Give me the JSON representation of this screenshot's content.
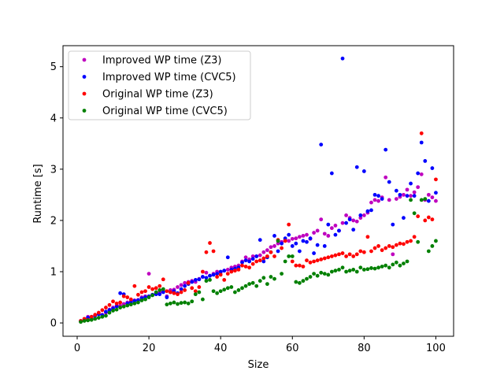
{
  "chart_data": {
    "type": "scatter",
    "title": "",
    "xlabel": "Size",
    "ylabel": "Runtime [s]",
    "xlim": [
      -3.95,
      104.95
    ],
    "ylim": [
      -0.26,
      5.41
    ],
    "xticks": [
      0,
      20,
      40,
      60,
      80,
      100
    ],
    "yticks": [
      0,
      1,
      2,
      3,
      4,
      5
    ],
    "grid": false,
    "legend_position": "upper-left",
    "series": [
      {
        "name": "Improved WP time (Z3)",
        "color": "#bf00bf",
        "x": [
          1,
          2,
          3,
          4,
          5,
          6,
          7,
          8,
          9,
          10,
          11,
          12,
          13,
          14,
          15,
          16,
          17,
          18,
          19,
          20,
          21,
          22,
          23,
          24,
          25,
          26,
          27,
          28,
          29,
          30,
          31,
          32,
          33,
          34,
          35,
          36,
          37,
          38,
          39,
          40,
          41,
          42,
          43,
          44,
          45,
          46,
          47,
          48,
          49,
          50,
          51,
          52,
          53,
          54,
          55,
          56,
          57,
          58,
          59,
          60,
          61,
          62,
          63,
          64,
          65,
          66,
          67,
          68,
          69,
          70,
          71,
          72,
          73,
          74,
          75,
          76,
          77,
          78,
          79,
          80,
          81,
          82,
          83,
          84,
          85,
          86,
          87,
          88,
          89,
          90,
          91,
          92,
          93,
          94,
          95,
          96,
          97,
          98,
          99,
          100
        ],
        "y": [
          0.04,
          0.06,
          0.12,
          0.1,
          0.15,
          0.18,
          0.16,
          0.2,
          0.26,
          0.3,
          0.33,
          0.34,
          0.37,
          0.4,
          0.42,
          0.44,
          0.45,
          0.5,
          0.52,
          0.96,
          0.55,
          0.58,
          0.6,
          0.62,
          0.52,
          0.64,
          0.65,
          0.7,
          0.74,
          0.78,
          0.8,
          0.82,
          0.8,
          0.86,
          0.9,
          0.98,
          0.92,
          0.96,
          1.0,
          0.98,
          1.02,
          1.04,
          1.08,
          1.1,
          1.12,
          1.2,
          1.28,
          1.24,
          1.3,
          1.3,
          1.32,
          1.38,
          1.42,
          1.48,
          1.5,
          1.55,
          1.58,
          1.62,
          1.6,
          1.64,
          1.65,
          1.68,
          1.7,
          1.72,
          1.64,
          1.76,
          1.8,
          2.02,
          1.74,
          1.7,
          1.85,
          1.9,
          1.8,
          1.95,
          2.1,
          2.05,
          2.0,
          1.98,
          2.05,
          2.1,
          2.15,
          2.35,
          2.4,
          2.38,
          2.45,
          2.84,
          2.4,
          1.34,
          2.42,
          2.46,
          2.5,
          2.6,
          2.48,
          2.55,
          2.65,
          2.9,
          2.4,
          2.5,
          2.45,
          2.38
        ]
      },
      {
        "name": "Improved WP time (CVC5)",
        "color": "#0000ff",
        "x": [
          1,
          2,
          3,
          4,
          5,
          6,
          7,
          8,
          9,
          10,
          11,
          12,
          13,
          14,
          15,
          16,
          17,
          18,
          19,
          20,
          21,
          22,
          23,
          24,
          25,
          26,
          27,
          28,
          29,
          30,
          31,
          32,
          33,
          34,
          35,
          36,
          37,
          38,
          39,
          40,
          41,
          42,
          43,
          44,
          45,
          46,
          47,
          48,
          49,
          50,
          51,
          52,
          53,
          54,
          55,
          56,
          57,
          58,
          59,
          60,
          61,
          62,
          63,
          64,
          65,
          66,
          67,
          68,
          69,
          70,
          71,
          72,
          73,
          74,
          75,
          76,
          77,
          78,
          79,
          80,
          81,
          82,
          83,
          84,
          85,
          86,
          87,
          88,
          89,
          90,
          91,
          92,
          93,
          94,
          95,
          96,
          97,
          98,
          99,
          100
        ],
        "y": [
          0.03,
          0.05,
          0.1,
          0.12,
          0.14,
          0.17,
          0.15,
          0.22,
          0.25,
          0.28,
          0.32,
          0.58,
          0.56,
          0.38,
          0.4,
          0.43,
          0.44,
          0.48,
          0.5,
          0.52,
          0.55,
          0.56,
          0.56,
          0.6,
          0.5,
          0.6,
          0.62,
          0.58,
          0.66,
          0.72,
          0.76,
          0.8,
          0.84,
          0.85,
          0.9,
          0.88,
          0.92,
          0.94,
          0.96,
          1.0,
          1.02,
          1.28,
          1.04,
          1.06,
          1.08,
          1.18,
          1.22,
          1.2,
          1.25,
          1.3,
          1.62,
          1.2,
          1.28,
          1.38,
          1.7,
          1.4,
          1.55,
          1.65,
          1.72,
          1.5,
          1.55,
          1.4,
          1.6,
          1.58,
          1.65,
          1.36,
          1.52,
          3.48,
          1.5,
          1.92,
          2.92,
          1.72,
          1.8,
          5.16,
          1.95,
          2.02,
          1.82,
          3.04,
          2.1,
          2.96,
          2.18,
          2.2,
          2.5,
          2.48,
          2.42,
          3.38,
          2.75,
          1.92,
          2.58,
          2.5,
          2.05,
          2.48,
          2.72,
          2.48,
          2.92,
          3.52,
          3.16,
          2.38,
          3.02,
          2.54
        ]
      },
      {
        "name": "Original WP time (Z3)",
        "color": "#ff0000",
        "x": [
          1,
          2,
          3,
          4,
          5,
          6,
          7,
          8,
          9,
          10,
          11,
          12,
          13,
          14,
          15,
          16,
          17,
          18,
          19,
          20,
          21,
          22,
          23,
          24,
          25,
          26,
          27,
          28,
          29,
          30,
          31,
          32,
          33,
          34,
          35,
          36,
          37,
          38,
          39,
          40,
          41,
          42,
          43,
          44,
          45,
          46,
          47,
          48,
          49,
          50,
          51,
          52,
          53,
          54,
          55,
          56,
          57,
          58,
          59,
          60,
          61,
          62,
          63,
          64,
          65,
          66,
          67,
          68,
          69,
          70,
          71,
          72,
          73,
          74,
          75,
          76,
          77,
          78,
          79,
          80,
          81,
          82,
          83,
          84,
          85,
          86,
          87,
          88,
          89,
          90,
          91,
          92,
          93,
          94,
          95,
          96,
          97,
          98,
          99,
          100
        ],
        "y": [
          0.04,
          0.08,
          0.06,
          0.12,
          0.16,
          0.2,
          0.25,
          0.3,
          0.35,
          0.42,
          0.38,
          0.4,
          0.52,
          0.5,
          0.46,
          0.72,
          0.55,
          0.6,
          0.62,
          0.7,
          0.66,
          0.68,
          0.72,
          0.85,
          0.62,
          0.6,
          0.58,
          0.56,
          0.6,
          0.64,
          0.78,
          0.68,
          0.62,
          0.7,
          1.0,
          1.38,
          1.56,
          1.4,
          0.9,
          0.94,
          0.84,
          0.96,
          1.0,
          1.02,
          1.04,
          1.12,
          1.1,
          1.08,
          1.15,
          1.2,
          1.22,
          1.26,
          1.3,
          1.38,
          1.3,
          1.62,
          1.46,
          1.6,
          1.92,
          1.2,
          1.12,
          1.12,
          1.1,
          1.22,
          1.18,
          1.2,
          1.22,
          1.24,
          1.26,
          1.28,
          1.3,
          1.32,
          1.34,
          1.36,
          1.3,
          1.34,
          1.3,
          1.34,
          1.4,
          1.38,
          1.68,
          1.4,
          1.46,
          1.5,
          1.42,
          1.46,
          1.5,
          1.48,
          1.52,
          1.55,
          1.54,
          1.58,
          1.6,
          1.68,
          2.08,
          3.7,
          2.0,
          2.06,
          2.02,
          2.8
        ]
      },
      {
        "name": "Original WP time (CVC5)",
        "color": "#008000",
        "x": [
          1,
          2,
          3,
          4,
          5,
          6,
          7,
          8,
          9,
          10,
          11,
          12,
          13,
          14,
          15,
          16,
          17,
          18,
          19,
          20,
          21,
          22,
          23,
          24,
          25,
          26,
          27,
          28,
          29,
          30,
          31,
          32,
          33,
          34,
          35,
          36,
          37,
          38,
          39,
          40,
          41,
          42,
          43,
          44,
          45,
          46,
          47,
          48,
          49,
          50,
          51,
          52,
          53,
          54,
          55,
          56,
          57,
          58,
          59,
          60,
          61,
          62,
          63,
          64,
          65,
          66,
          67,
          68,
          69,
          70,
          71,
          72,
          73,
          74,
          75,
          76,
          77,
          78,
          79,
          80,
          81,
          82,
          83,
          84,
          85,
          86,
          87,
          88,
          89,
          90,
          91,
          92,
          93,
          94,
          95,
          96,
          97,
          98,
          99,
          100
        ],
        "y": [
          0.02,
          0.04,
          0.05,
          0.06,
          0.08,
          0.1,
          0.12,
          0.14,
          0.2,
          0.24,
          0.26,
          0.3,
          0.32,
          0.34,
          0.36,
          0.38,
          0.4,
          0.44,
          0.46,
          0.5,
          0.54,
          0.6,
          0.64,
          0.66,
          0.36,
          0.38,
          0.4,
          0.37,
          0.39,
          0.4,
          0.38,
          0.42,
          0.56,
          0.6,
          0.46,
          0.82,
          0.84,
          0.62,
          0.58,
          0.62,
          0.65,
          0.68,
          0.7,
          0.6,
          0.64,
          0.68,
          0.72,
          0.76,
          0.78,
          0.72,
          0.82,
          0.88,
          0.76,
          0.9,
          0.86,
          1.6,
          0.96,
          1.2,
          1.3,
          1.3,
          0.8,
          0.78,
          0.82,
          0.86,
          0.9,
          0.96,
          0.92,
          0.98,
          0.96,
          0.94,
          1.0,
          1.02,
          1.04,
          1.08,
          1.0,
          1.02,
          1.04,
          1.0,
          1.08,
          1.04,
          1.05,
          1.07,
          1.06,
          1.08,
          1.1,
          1.12,
          1.08,
          1.14,
          1.18,
          1.12,
          1.16,
          1.2,
          2.4,
          2.14,
          1.58,
          2.4,
          2.42,
          1.4,
          1.5,
          1.6
        ]
      }
    ]
  }
}
